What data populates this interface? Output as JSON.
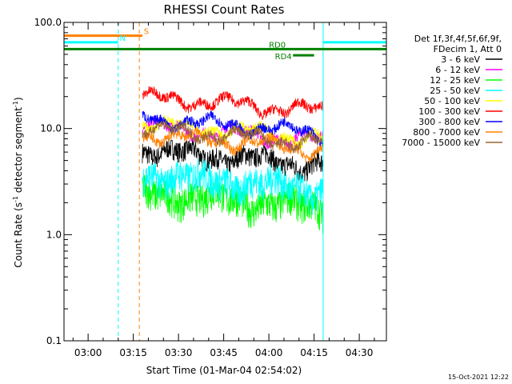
{
  "chart_data": {
    "type": "line",
    "title": "RHESSI Count Rates",
    "xlabel": "Start Time (01-Mar-04 02:54:02)",
    "ylabel_main": "Count Rate (s",
    "ylabel_sup1": "-1",
    "ylabel_mid": " detector segment",
    "ylabel_sup2": "-1",
    "ylabel_end": ")",
    "y_scale": "log",
    "ylim": [
      0.1,
      100
    ],
    "y_ticks": [
      0.1,
      1,
      10,
      100
    ],
    "y_tick_labels": [
      "0.1",
      "1.0",
      "10.0",
      "100.0"
    ],
    "xlim_minutes": [
      -8,
      99
    ],
    "x_ticks_minutes": [
      0,
      15,
      30,
      45,
      60,
      75,
      90
    ],
    "x_tick_labels": [
      "03:00",
      "03:15",
      "03:30",
      "03:45",
      "04:00",
      "04:15",
      "04:30"
    ],
    "data_start_minutes": 18,
    "data_end_minutes": 78,
    "grid": false,
    "legend_position": "right",
    "legend_header": [
      "Det 1f,3f,4f,5f,6f,9f,",
      "FDecim 1, Att 0"
    ],
    "series": [
      {
        "name": "3 - 6 keV",
        "color": "#000000",
        "level": 5.0
      },
      {
        "name": "6 - 12 keV",
        "color": "#ff00ff",
        "level": 8.5
      },
      {
        "name": "12 - 25 keV",
        "color": "#00ff00",
        "level": 2.0
      },
      {
        "name": "25 - 50 keV",
        "color": "#00ffff",
        "level": 3.0
      },
      {
        "name": "50 - 100 keV",
        "color": "#ffff00",
        "level": 9.0
      },
      {
        "name": "100 - 300 keV",
        "color": "#ff0000",
        "level": 16.0
      },
      {
        "name": "300 - 800 keV",
        "color": "#0000ff",
        "level": 10.0
      },
      {
        "name": "800 - 7000 keV",
        "color": "#ff8000",
        "level": 7.0
      },
      {
        "name": "7000 - 15000 keV",
        "color": "#996633",
        "level": 8.0
      }
    ],
    "annotations": {
      "bars": [
        {
          "label": "S",
          "color": "#ff8000",
          "x_start_min": -8,
          "x_end_min": 18,
          "y": 75,
          "label_x_min": 18.5
        },
        {
          "label": "N",
          "color": "#00ffff",
          "x_start_min": -8,
          "x_end_min": 10,
          "y": 65,
          "label_x_min": 10.5
        },
        {
          "label": "N",
          "color": "#00ffff",
          "x_start_min": 78,
          "x_end_min": 99,
          "y": 65
        },
        {
          "label": "RD0",
          "color": "#008000",
          "x_start_min": -8,
          "x_end_min": 99,
          "y": 56,
          "label_x_min": 60
        },
        {
          "label": "RD4",
          "color": "#008000",
          "x_start_min": 68,
          "x_end_min": 75,
          "y": 49,
          "label_x_min": 62
        }
      ],
      "vlines": [
        {
          "x_min": -8,
          "color": "#00ffff",
          "style": "dashed"
        },
        {
          "x_min": 10,
          "color": "#00ffff",
          "style": "dashed"
        },
        {
          "x_min": 17,
          "color": "#ff8000",
          "style": "dashed"
        },
        {
          "x_min": 78,
          "color": "#00ffff",
          "style": "solid"
        },
        {
          "x_min": 99,
          "color": "#00ffff",
          "style": "dashed"
        }
      ]
    },
    "footer_date": "15-Oct-2021 12:22"
  }
}
